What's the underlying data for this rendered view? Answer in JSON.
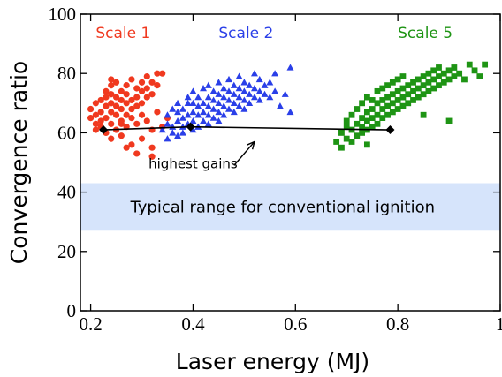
{
  "chart_data": {
    "type": "scatter",
    "xlabel": "Laser energy (MJ)",
    "ylabel": "Convergence ratio",
    "xlim": [
      0.18,
      1.0
    ],
    "ylim": [
      0,
      100
    ],
    "xticks": [
      "0.2",
      "0.4",
      "0.6",
      "0.8",
      "1"
    ],
    "xtick_values": [
      0.2,
      0.4,
      0.6,
      0.8,
      1.0
    ],
    "yticks": [
      "0",
      "20",
      "40",
      "60",
      "80",
      "100"
    ],
    "ytick_values": [
      0,
      20,
      40,
      60,
      80,
      100
    ],
    "grid": false,
    "band": {
      "label": "Typical range for conventional  ignition",
      "y_range": [
        27,
        43
      ],
      "color": "#d6e4fb"
    },
    "series": [
      {
        "name": "Scale 1",
        "color": "#f0391f",
        "marker": "circle",
        "label_at": [
          0.21,
          92
        ],
        "points": [
          [
            0.2,
            65
          ],
          [
            0.2,
            68
          ],
          [
            0.21,
            66
          ],
          [
            0.21,
            63
          ],
          [
            0.21,
            70
          ],
          [
            0.22,
            62
          ],
          [
            0.22,
            67
          ],
          [
            0.22,
            71
          ],
          [
            0.22,
            64
          ],
          [
            0.23,
            69
          ],
          [
            0.23,
            72
          ],
          [
            0.23,
            65
          ],
          [
            0.23,
            60
          ],
          [
            0.23,
            74
          ],
          [
            0.24,
            67
          ],
          [
            0.24,
            70
          ],
          [
            0.24,
            63
          ],
          [
            0.24,
            58
          ],
          [
            0.24,
            73
          ],
          [
            0.24,
            76
          ],
          [
            0.25,
            66
          ],
          [
            0.25,
            69
          ],
          [
            0.25,
            72
          ],
          [
            0.25,
            61
          ],
          [
            0.25,
            77
          ],
          [
            0.26,
            64
          ],
          [
            0.26,
            68
          ],
          [
            0.26,
            71
          ],
          [
            0.26,
            74
          ],
          [
            0.26,
            59
          ],
          [
            0.27,
            66
          ],
          [
            0.27,
            70
          ],
          [
            0.27,
            73
          ],
          [
            0.27,
            62
          ],
          [
            0.27,
            76
          ],
          [
            0.28,
            68
          ],
          [
            0.28,
            71
          ],
          [
            0.28,
            65
          ],
          [
            0.28,
            78
          ],
          [
            0.28,
            56
          ],
          [
            0.29,
            69
          ],
          [
            0.29,
            72
          ],
          [
            0.29,
            75
          ],
          [
            0.29,
            63
          ],
          [
            0.3,
            70
          ],
          [
            0.3,
            74
          ],
          [
            0.3,
            77
          ],
          [
            0.3,
            66
          ],
          [
            0.3,
            58
          ],
          [
            0.31,
            72
          ],
          [
            0.31,
            75
          ],
          [
            0.31,
            79
          ],
          [
            0.31,
            64
          ],
          [
            0.32,
            73
          ],
          [
            0.32,
            77
          ],
          [
            0.32,
            61
          ],
          [
            0.32,
            55
          ],
          [
            0.32,
            52
          ],
          [
            0.33,
            76
          ],
          [
            0.33,
            80
          ],
          [
            0.33,
            67
          ],
          [
            0.34,
            80
          ],
          [
            0.34,
            62
          ],
          [
            0.35,
            65
          ],
          [
            0.27,
            55
          ],
          [
            0.29,
            53
          ],
          [
            0.21,
            61
          ],
          [
            0.24,
            78
          ],
          [
            0.26,
            63
          ]
        ]
      },
      {
        "name": "Scale 2",
        "color": "#2a3fe8",
        "marker": "triangle",
        "label_at": [
          0.45,
          92
        ],
        "points": [
          [
            0.34,
            61
          ],
          [
            0.35,
            63
          ],
          [
            0.35,
            58
          ],
          [
            0.35,
            66
          ],
          [
            0.36,
            62
          ],
          [
            0.36,
            60
          ],
          [
            0.36,
            68
          ],
          [
            0.37,
            64
          ],
          [
            0.37,
            59
          ],
          [
            0.37,
            67
          ],
          [
            0.37,
            70
          ],
          [
            0.38,
            62
          ],
          [
            0.38,
            65
          ],
          [
            0.38,
            68
          ],
          [
            0.38,
            60
          ],
          [
            0.39,
            63
          ],
          [
            0.39,
            66
          ],
          [
            0.39,
            70
          ],
          [
            0.39,
            72
          ],
          [
            0.4,
            61
          ],
          [
            0.4,
            64
          ],
          [
            0.4,
            67
          ],
          [
            0.4,
            70
          ],
          [
            0.4,
            74
          ],
          [
            0.41,
            62
          ],
          [
            0.41,
            66
          ],
          [
            0.41,
            69
          ],
          [
            0.41,
            72
          ],
          [
            0.42,
            64
          ],
          [
            0.42,
            67
          ],
          [
            0.42,
            70
          ],
          [
            0.42,
            75
          ],
          [
            0.43,
            63
          ],
          [
            0.43,
            66
          ],
          [
            0.43,
            69
          ],
          [
            0.43,
            72
          ],
          [
            0.43,
            76
          ],
          [
            0.44,
            65
          ],
          [
            0.44,
            68
          ],
          [
            0.44,
            71
          ],
          [
            0.44,
            74
          ],
          [
            0.45,
            64
          ],
          [
            0.45,
            67
          ],
          [
            0.45,
            70
          ],
          [
            0.45,
            73
          ],
          [
            0.45,
            77
          ],
          [
            0.46,
            66
          ],
          [
            0.46,
            69
          ],
          [
            0.46,
            72
          ],
          [
            0.46,
            75
          ],
          [
            0.47,
            68
          ],
          [
            0.47,
            71
          ],
          [
            0.47,
            74
          ],
          [
            0.47,
            78
          ],
          [
            0.48,
            67
          ],
          [
            0.48,
            70
          ],
          [
            0.48,
            73
          ],
          [
            0.48,
            76
          ],
          [
            0.49,
            69
          ],
          [
            0.49,
            72
          ],
          [
            0.49,
            75
          ],
          [
            0.49,
            79
          ],
          [
            0.5,
            68
          ],
          [
            0.5,
            71
          ],
          [
            0.5,
            74
          ],
          [
            0.5,
            77
          ],
          [
            0.51,
            70
          ],
          [
            0.51,
            73
          ],
          [
            0.51,
            76
          ],
          [
            0.52,
            72
          ],
          [
            0.52,
            75
          ],
          [
            0.52,
            80
          ],
          [
            0.53,
            71
          ],
          [
            0.53,
            74
          ],
          [
            0.53,
            78
          ],
          [
            0.54,
            73
          ],
          [
            0.54,
            76
          ],
          [
            0.55,
            72
          ],
          [
            0.55,
            77
          ],
          [
            0.56,
            74
          ],
          [
            0.56,
            80
          ],
          [
            0.57,
            69
          ],
          [
            0.58,
            73
          ],
          [
            0.59,
            82
          ],
          [
            0.59,
            67
          ]
        ]
      },
      {
        "name": "Scale 5",
        "color": "#1e9414",
        "marker": "square",
        "label_at": [
          0.8,
          92
        ],
        "points": [
          [
            0.68,
            57
          ],
          [
            0.69,
            60
          ],
          [
            0.69,
            55
          ],
          [
            0.7,
            62
          ],
          [
            0.7,
            58
          ],
          [
            0.7,
            64
          ],
          [
            0.71,
            61
          ],
          [
            0.71,
            57
          ],
          [
            0.71,
            66
          ],
          [
            0.72,
            63
          ],
          [
            0.72,
            59
          ],
          [
            0.72,
            68
          ],
          [
            0.73,
            62
          ],
          [
            0.73,
            65
          ],
          [
            0.73,
            60
          ],
          [
            0.73,
            70
          ],
          [
            0.74,
            64
          ],
          [
            0.74,
            67
          ],
          [
            0.74,
            61
          ],
          [
            0.74,
            72
          ],
          [
            0.75,
            65
          ],
          [
            0.75,
            68
          ],
          [
            0.75,
            62
          ],
          [
            0.75,
            71
          ],
          [
            0.76,
            66
          ],
          [
            0.76,
            70
          ],
          [
            0.76,
            63
          ],
          [
            0.76,
            74
          ],
          [
            0.77,
            68
          ],
          [
            0.77,
            71
          ],
          [
            0.77,
            65
          ],
          [
            0.77,
            75
          ],
          [
            0.78,
            69
          ],
          [
            0.78,
            72
          ],
          [
            0.78,
            66
          ],
          [
            0.78,
            76
          ],
          [
            0.79,
            70
          ],
          [
            0.79,
            73
          ],
          [
            0.79,
            67
          ],
          [
            0.79,
            77
          ],
          [
            0.8,
            71
          ],
          [
            0.8,
            74
          ],
          [
            0.8,
            68
          ],
          [
            0.8,
            78
          ],
          [
            0.81,
            72
          ],
          [
            0.81,
            75
          ],
          [
            0.81,
            69
          ],
          [
            0.81,
            79
          ],
          [
            0.82,
            73
          ],
          [
            0.82,
            76
          ],
          [
            0.82,
            70
          ],
          [
            0.83,
            74
          ],
          [
            0.83,
            77
          ],
          [
            0.83,
            71
          ],
          [
            0.84,
            75
          ],
          [
            0.84,
            78
          ],
          [
            0.84,
            72
          ],
          [
            0.85,
            76
          ],
          [
            0.85,
            79
          ],
          [
            0.85,
            73
          ],
          [
            0.86,
            77
          ],
          [
            0.86,
            80
          ],
          [
            0.86,
            74
          ],
          [
            0.87,
            78
          ],
          [
            0.87,
            81
          ],
          [
            0.87,
            75
          ],
          [
            0.88,
            79
          ],
          [
            0.88,
            76
          ],
          [
            0.88,
            82
          ],
          [
            0.89,
            80
          ],
          [
            0.89,
            77
          ],
          [
            0.9,
            81
          ],
          [
            0.9,
            78
          ],
          [
            0.91,
            79
          ],
          [
            0.91,
            82
          ],
          [
            0.92,
            80
          ],
          [
            0.93,
            78
          ],
          [
            0.94,
            83
          ],
          [
            0.95,
            81
          ],
          [
            0.96,
            79
          ],
          [
            0.97,
            83
          ],
          [
            0.9,
            64
          ],
          [
            0.85,
            66
          ],
          [
            0.74,
            56
          ]
        ]
      }
    ],
    "optimum_line": {
      "points": [
        [
          0.225,
          61
        ],
        [
          0.395,
          62
        ],
        [
          0.785,
          61
        ]
      ],
      "color": "#000000",
      "annotation": "highest gains",
      "annotation_at": [
        0.4,
        48
      ],
      "arrow_from": [
        0.48,
        49
      ],
      "arrow_to": [
        0.52,
        57
      ]
    }
  }
}
